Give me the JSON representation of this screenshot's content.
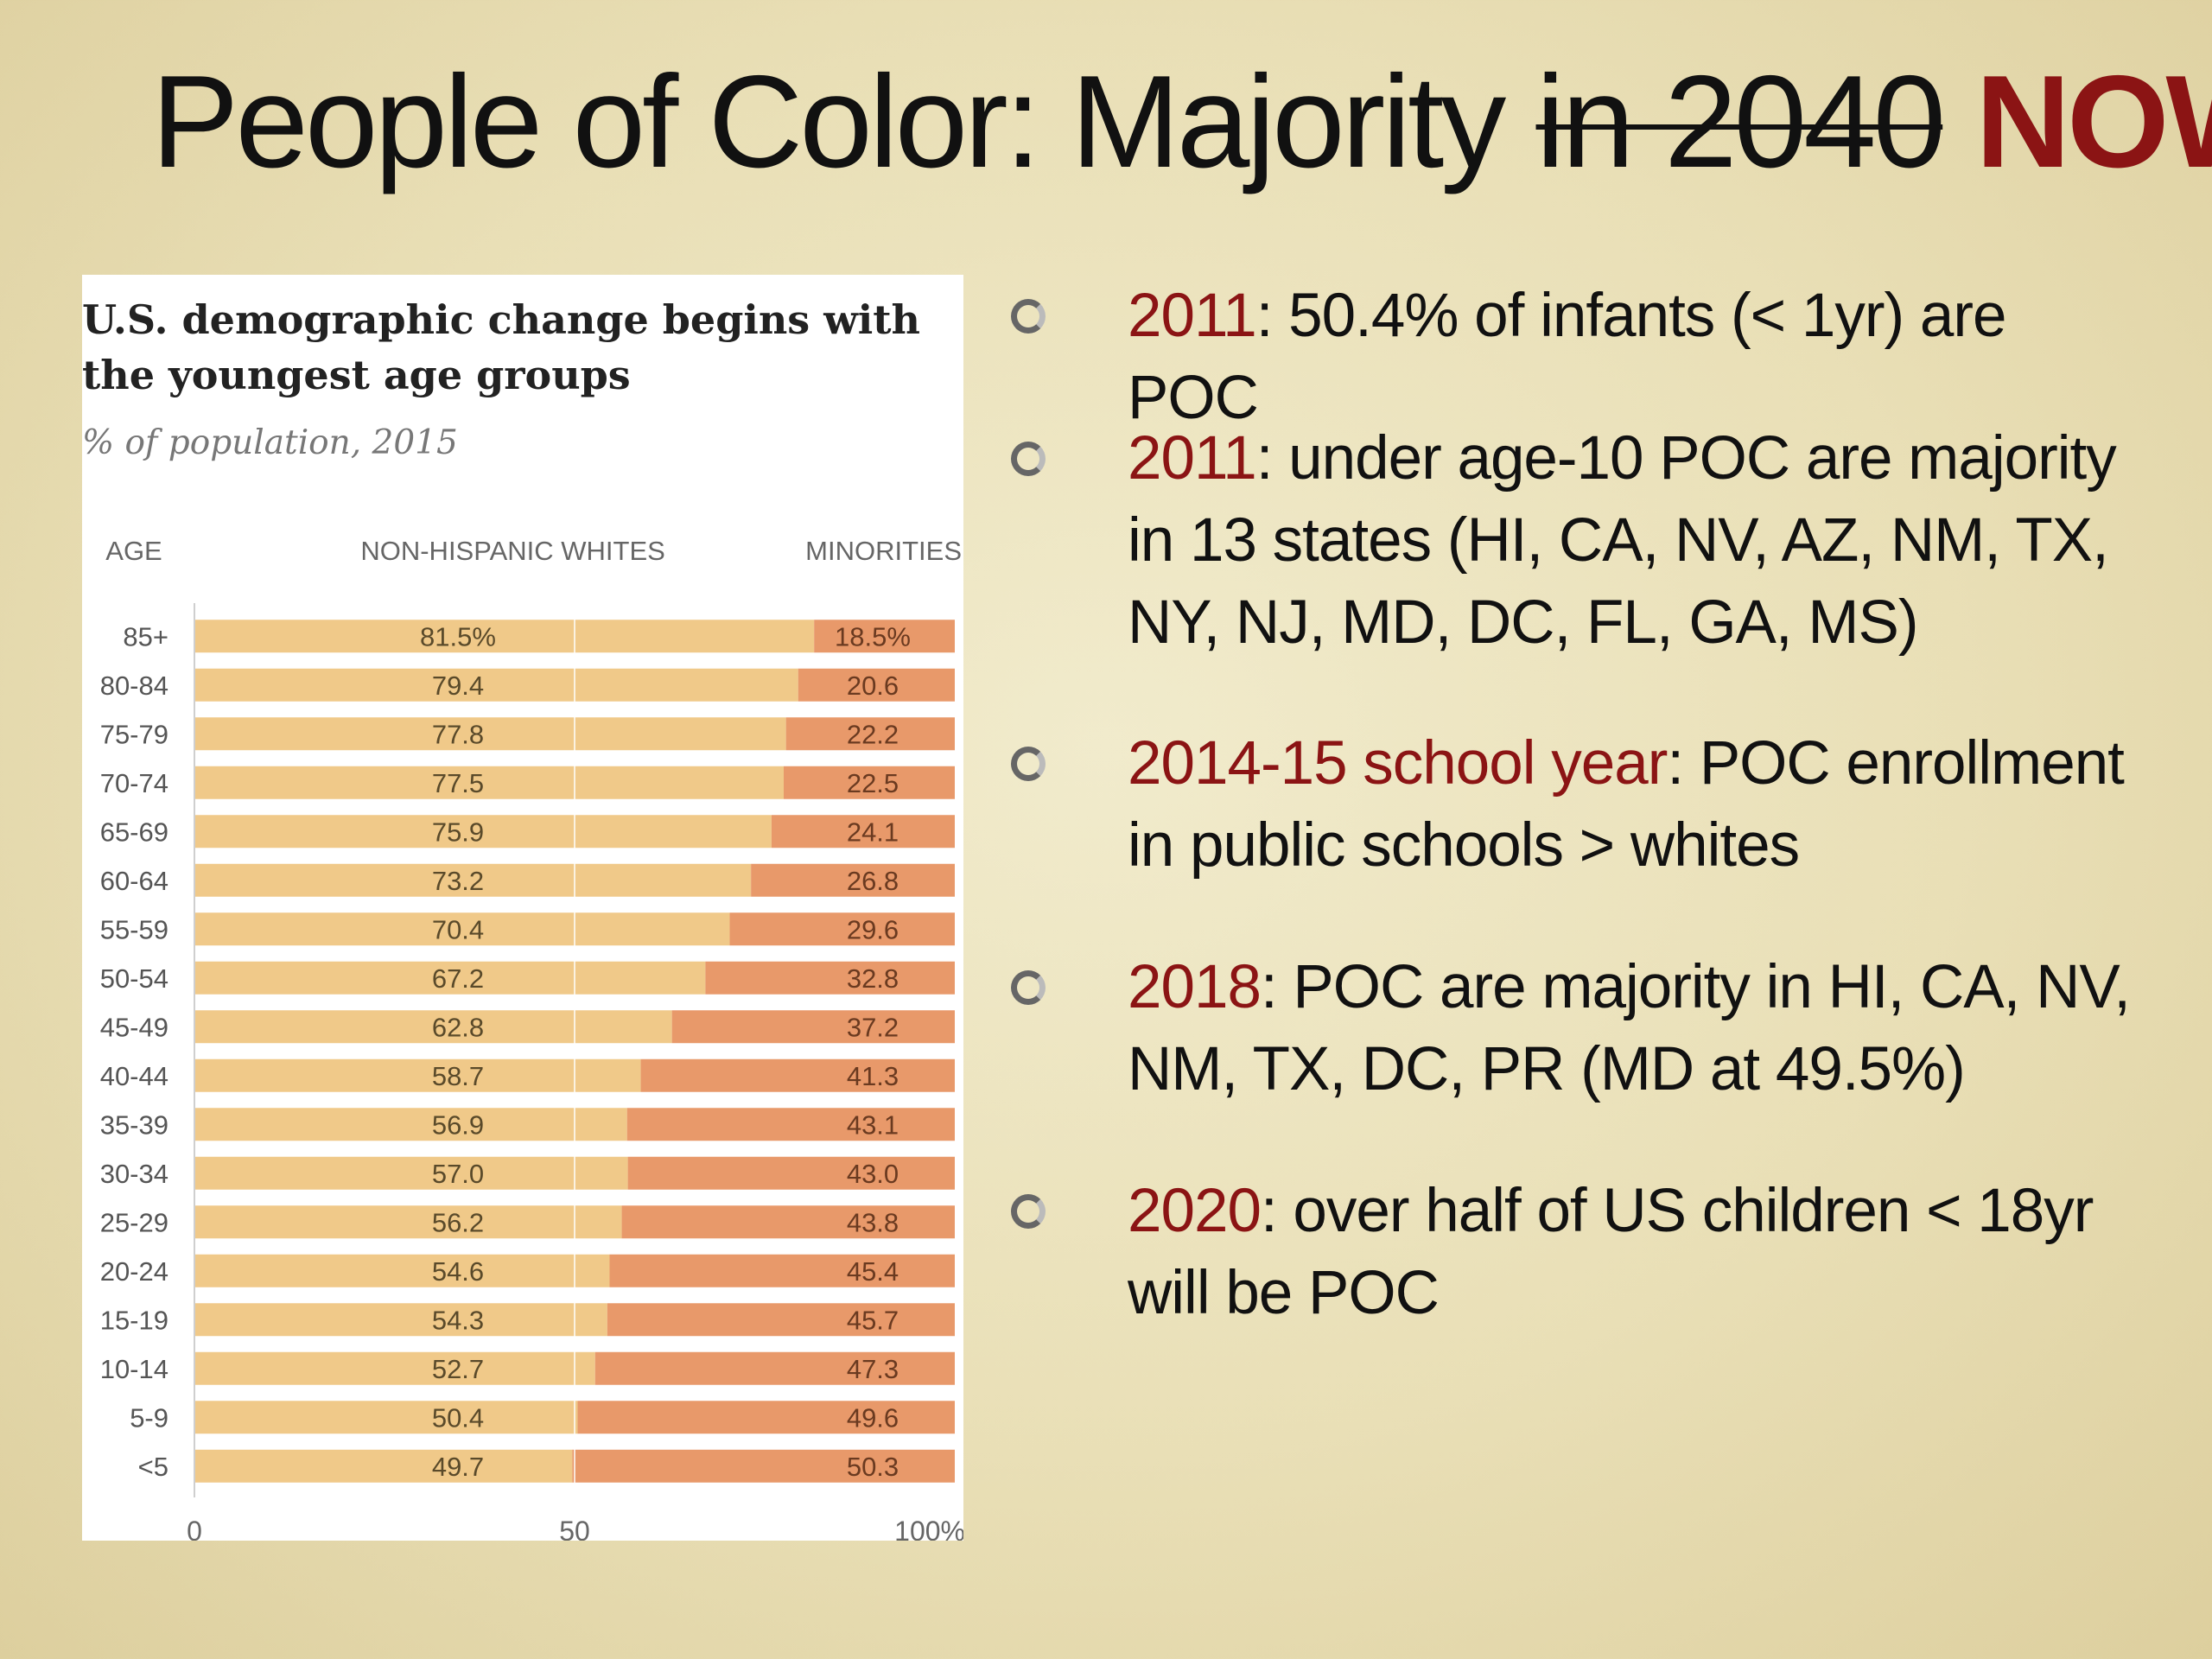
{
  "slide": {
    "title_main": "People of Color: Majority ",
    "title_struck": "in 2040",
    "title_emphasis": "NOW"
  },
  "chart_data": {
    "type": "bar",
    "stacked": true,
    "orientation": "horizontal",
    "title": "U.S. demographic change begins with the youngest age groups",
    "subtitle": "% of population, 2015",
    "row_header": "AGE",
    "categories": [
      "85+",
      "80-84",
      "75-79",
      "70-74",
      "65-69",
      "60-64",
      "55-59",
      "50-54",
      "45-49",
      "40-44",
      "35-39",
      "30-34",
      "25-29",
      "20-24",
      "15-19",
      "10-14",
      "5-9",
      "<5"
    ],
    "series": [
      {
        "name": "NON-HISPANIC WHITES",
        "color": "#f0c989",
        "values": [
          81.5,
          79.4,
          77.8,
          77.5,
          75.9,
          73.2,
          70.4,
          67.2,
          62.8,
          58.7,
          56.9,
          57.0,
          56.2,
          54.6,
          54.3,
          52.7,
          50.4,
          49.7
        ],
        "labels": [
          "81.5%",
          "79.4",
          "77.8",
          "77.5",
          "75.9",
          "73.2",
          "70.4",
          "67.2",
          "62.8",
          "58.7",
          "56.9",
          "57.0",
          "56.2",
          "54.6",
          "54.3",
          "52.7",
          "50.4",
          "49.7"
        ]
      },
      {
        "name": "MINORITIES",
        "color": "#e8996a",
        "values": [
          18.5,
          20.6,
          22.2,
          22.5,
          24.1,
          26.8,
          29.6,
          32.8,
          37.2,
          41.3,
          43.1,
          43.0,
          43.8,
          45.4,
          45.7,
          47.3,
          49.6,
          50.3
        ],
        "labels": [
          "18.5%",
          "20.6",
          "22.2",
          "22.5",
          "24.1",
          "26.8",
          "29.6",
          "32.8",
          "37.2",
          "41.3",
          "43.1",
          "43.0",
          "43.8",
          "45.4",
          "45.7",
          "47.3",
          "49.6",
          "50.3"
        ]
      }
    ],
    "xlim": [
      0,
      100
    ],
    "xticks": [
      0,
      50,
      100
    ],
    "xtick_labels": [
      "0",
      "50",
      "100%"
    ],
    "gridlines": [
      50
    ]
  },
  "bullets": [
    {
      "highlight": "2011",
      "text": ": 50.4% of infants (< 1yr) are POC"
    },
    {
      "highlight": "2011",
      "text": ": under age-10 POC are majority in 13 states (HI, CA, NV, AZ, NM, TX, NY, NJ, MD, DC, FL, GA, MS)"
    },
    {
      "highlight": "2014-15 school year",
      "text": ": POC enrollment in public schools > whites"
    },
    {
      "highlight": "2018",
      "text": ": POC are majority in HI, CA, NV, NM, TX, DC, PR (MD at 49.5%)"
    },
    {
      "highlight": "2020",
      "text": ": over half of US children < 18yr will be POC"
    }
  ]
}
